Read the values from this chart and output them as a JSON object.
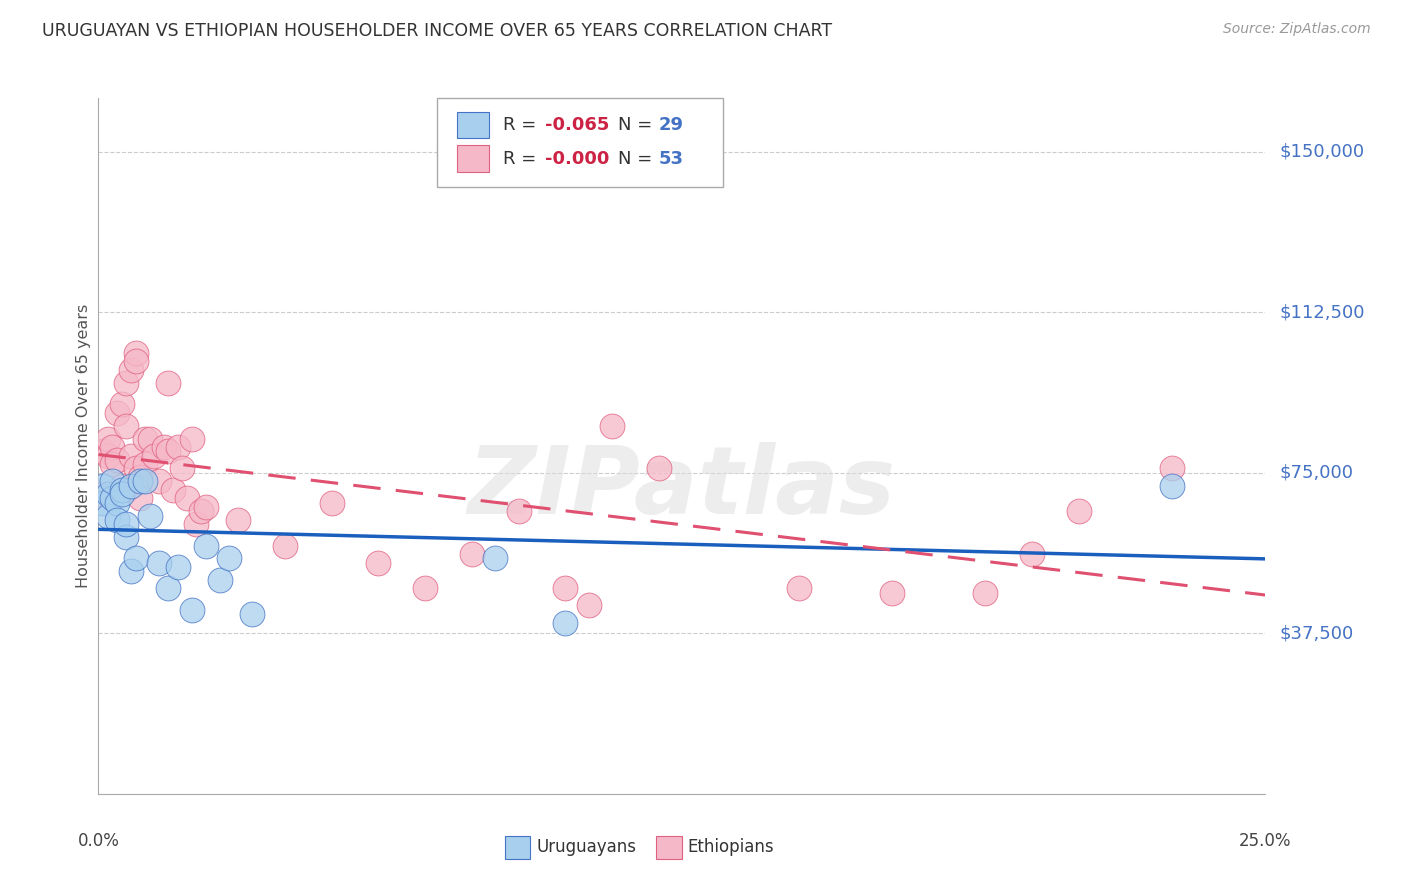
{
  "title": "URUGUAYAN VS ETHIOPIAN HOUSEHOLDER INCOME OVER 65 YEARS CORRELATION CHART",
  "source": "Source: ZipAtlas.com",
  "ylabel": "Householder Income Over 65 years",
  "ytick_values": [
    0,
    37500,
    75000,
    112500,
    150000
  ],
  "ytick_labels": [
    "",
    "$37,500",
    "$75,000",
    "$112,500",
    "$150,000"
  ],
  "xmin": 0.0,
  "xmax": 0.25,
  "ymin": 0,
  "ymax": 162500,
  "uruguayan_fill": "#a8d0ee",
  "ethiopian_fill": "#f5b8c8",
  "uruguayan_edge": "#4472c4",
  "ethiopian_edge": "#e06080",
  "uruguayan_line": "#1a5fbd",
  "ethiopian_line": "#e05070",
  "watermark": "ZIPatlas",
  "legend_R_uru": "-0.065",
  "legend_N_uru": "29",
  "legend_R_eth": "-0.000",
  "legend_N_eth": "53",
  "uruguayan_x": [
    0.001,
    0.001,
    0.002,
    0.002,
    0.003,
    0.003,
    0.004,
    0.004,
    0.005,
    0.005,
    0.006,
    0.006,
    0.007,
    0.007,
    0.008,
    0.009,
    0.01,
    0.011,
    0.013,
    0.015,
    0.017,
    0.02,
    0.023,
    0.026,
    0.028,
    0.033,
    0.085,
    0.1,
    0.23
  ],
  "uruguayan_y": [
    72000,
    68000,
    70000,
    65000,
    69000,
    73000,
    68000,
    64000,
    71000,
    70000,
    60000,
    63000,
    72000,
    52000,
    55000,
    73000,
    73000,
    65000,
    54000,
    48000,
    53000,
    43000,
    58000,
    50000,
    55000,
    42000,
    55000,
    40000,
    72000
  ],
  "ethiopian_x": [
    0.001,
    0.001,
    0.002,
    0.002,
    0.003,
    0.003,
    0.004,
    0.004,
    0.005,
    0.005,
    0.006,
    0.006,
    0.006,
    0.007,
    0.007,
    0.008,
    0.008,
    0.008,
    0.009,
    0.009,
    0.01,
    0.01,
    0.011,
    0.012,
    0.013,
    0.014,
    0.015,
    0.015,
    0.016,
    0.017,
    0.018,
    0.019,
    0.02,
    0.021,
    0.022,
    0.023,
    0.03,
    0.04,
    0.05,
    0.06,
    0.07,
    0.08,
    0.09,
    0.1,
    0.105,
    0.11,
    0.12,
    0.15,
    0.17,
    0.19,
    0.2,
    0.21,
    0.23
  ],
  "ethiopian_y": [
    70000,
    80000,
    79000,
    83000,
    81000,
    77000,
    89000,
    78000,
    72000,
    91000,
    86000,
    71000,
    96000,
    99000,
    79000,
    103000,
    101000,
    76000,
    74000,
    69000,
    77000,
    83000,
    83000,
    79000,
    73000,
    81000,
    80000,
    96000,
    71000,
    81000,
    76000,
    69000,
    83000,
    63000,
    66000,
    67000,
    64000,
    58000,
    68000,
    54000,
    48000,
    56000,
    66000,
    48000,
    44000,
    86000,
    76000,
    48000,
    47000,
    47000,
    56000,
    66000,
    76000
  ]
}
